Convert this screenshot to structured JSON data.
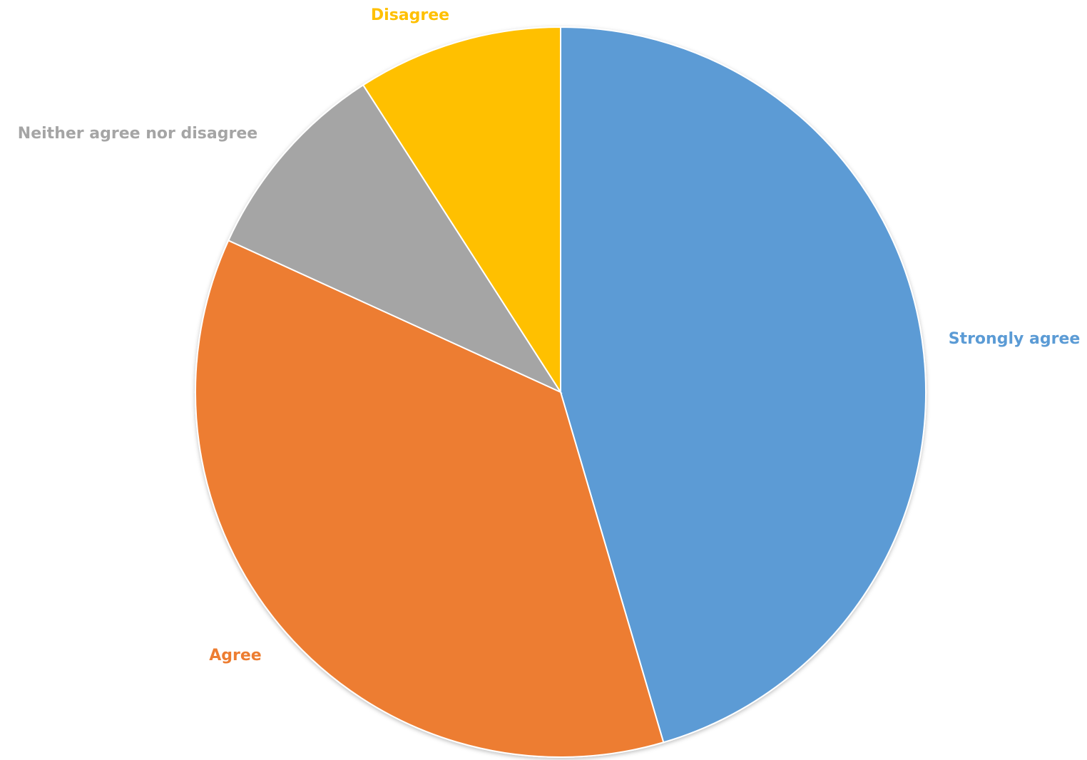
{
  "chart_data": {
    "type": "pie",
    "title": "",
    "slices": [
      {
        "label": "Strongly agree",
        "value": 45.5,
        "color": "#5B9BD5"
      },
      {
        "label": "Agree",
        "value": 36.4,
        "color": "#ED7D31"
      },
      {
        "label": "Neither agree nor disagree",
        "value": 9.1,
        "color": "#A5A5A5"
      },
      {
        "label": "Disagree",
        "value": 9.1,
        "color": "#FFC000"
      }
    ],
    "legend": "none",
    "data_labels": "category names outside slices"
  }
}
